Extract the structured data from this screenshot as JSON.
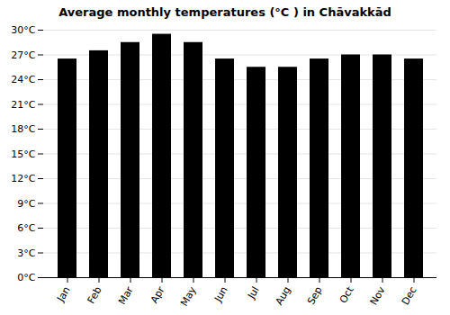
{
  "chart_data": {
    "type": "bar",
    "title": "Average monthly temperatures (°C ) in Chāvakkād",
    "categories": [
      "Jan",
      "Feb",
      "Mar",
      "Apr",
      "May",
      "Jun",
      "Jul",
      "Aug",
      "Sep",
      "Oct",
      "Nov",
      "Dec"
    ],
    "values": [
      26.5,
      27.5,
      28.5,
      29.5,
      28.5,
      26.5,
      25.5,
      25.5,
      26.5,
      27.0,
      27.0,
      26.5
    ],
    "ylim": [
      0,
      30
    ],
    "yticks": [
      {
        "value": 0,
        "label": "0°C"
      },
      {
        "value": 3,
        "label": "3°C"
      },
      {
        "value": 6,
        "label": "6°C"
      },
      {
        "value": 9,
        "label": "9°C"
      },
      {
        "value": 12,
        "label": "12°C"
      },
      {
        "value": 15,
        "label": "15°C"
      },
      {
        "value": 18,
        "label": "18°C"
      },
      {
        "value": 21,
        "label": "21°C"
      },
      {
        "value": 24,
        "label": "24°C"
      },
      {
        "value": 27,
        "label": "27°C"
      },
      {
        "value": 30,
        "label": "30°C"
      }
    ],
    "grid": true
  }
}
